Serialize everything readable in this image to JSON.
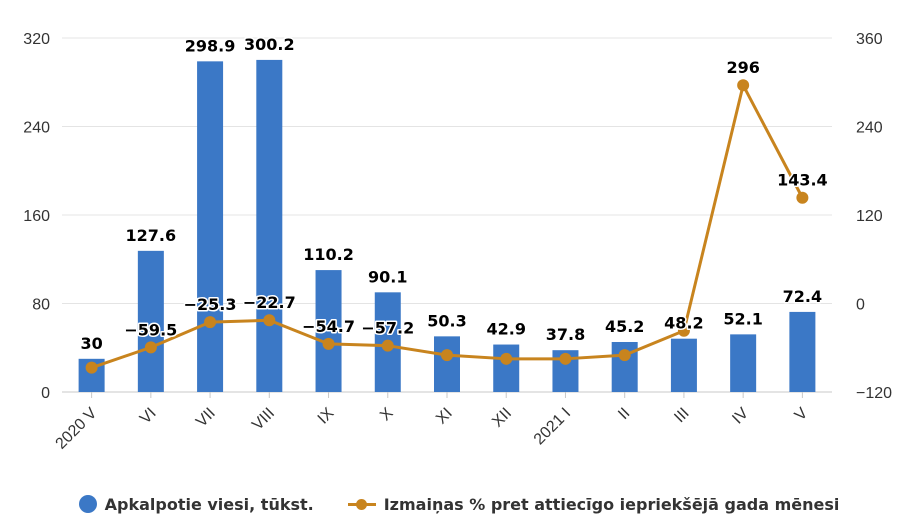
{
  "chart_data": {
    "type": "bar+line",
    "categories": [
      "2020 V",
      "VI",
      "VII",
      "VIII",
      "IX",
      "X",
      "XI",
      "XII",
      "2021 I",
      "II",
      "III",
      "IV",
      "V"
    ],
    "series": [
      {
        "name": "Apkalpotie viesi, tūkst.",
        "type": "bar",
        "axis": "left",
        "color": "#3b78c6",
        "values": [
          30,
          127.6,
          298.9,
          300.2,
          110.2,
          90.1,
          50.3,
          42.9,
          37.8,
          45.2,
          48.2,
          52.1,
          72.4
        ],
        "labels": [
          "30",
          "127.6",
          "298.9",
          "300.2",
          "110.2",
          "90.1",
          "50.3",
          "42.9",
          "37.8",
          "45.2",
          "48.2",
          "52.1",
          "72.4"
        ]
      },
      {
        "name": "Izmaiņas % pret attiecīgo iepriekšējā gada mēnesi",
        "type": "line",
        "axis": "right",
        "color": "#c8841e",
        "values": [
          -87,
          -59.5,
          -25.3,
          -22.7,
          -54.7,
          -57.2,
          -70,
          -75,
          -75,
          -70,
          -37,
          296,
          143.4
        ],
        "labels": [
          "",
          "−59.5",
          "−25.3",
          "−22.7",
          "−54.7",
          "−57.2",
          "",
          "",
          "",
          "",
          "",
          "296",
          "143.4"
        ]
      }
    ],
    "y_left": {
      "min": 0,
      "max": 320,
      "ticks": [
        "0",
        "80",
        "160",
        "240",
        "320"
      ]
    },
    "y_right": {
      "min": -120,
      "max": 360,
      "ticks": [
        "−120",
        "0",
        "120",
        "240",
        "360"
      ]
    },
    "grid": true,
    "legend_position": "bottom"
  }
}
